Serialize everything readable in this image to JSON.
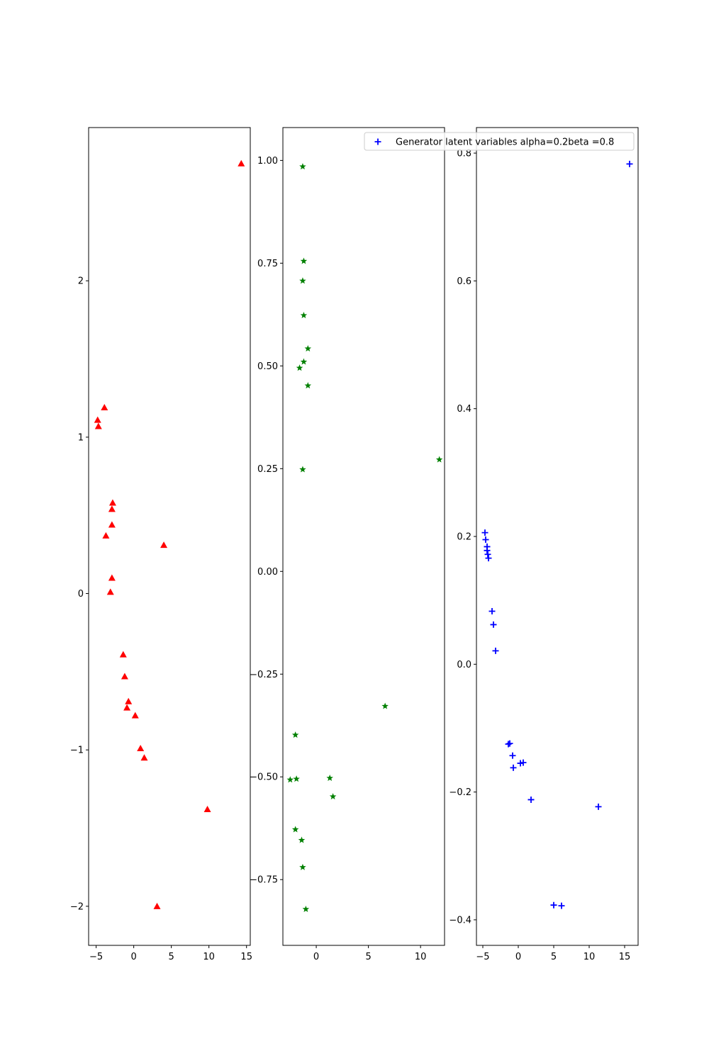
{
  "chart_data": [
    {
      "type": "scatter",
      "title": "",
      "xlabel": "",
      "ylabel": "",
      "xlim": [
        -6.0,
        15.5
      ],
      "ylim": [
        -2.25,
        2.98
      ],
      "xticks": [
        -5,
        0,
        5,
        10,
        15
      ],
      "yticks": [
        -2,
        -1,
        0,
        1,
        2
      ],
      "xtick_labels": [
        "−5",
        "0",
        "5",
        "10",
        "15"
      ],
      "ytick_labels": [
        "−2",
        "−1",
        "0",
        "1",
        "2"
      ],
      "grid": false,
      "series": [
        {
          "marker": "triangle",
          "color": "#ff0000",
          "points": [
            [
              14.3,
              2.75
            ],
            [
              -3.9,
              1.19
            ],
            [
              -4.8,
              1.11
            ],
            [
              -4.7,
              1.07
            ],
            [
              -2.8,
              0.58
            ],
            [
              -2.9,
              0.54
            ],
            [
              -2.9,
              0.44
            ],
            [
              -3.7,
              0.37
            ],
            [
              4.0,
              0.31
            ],
            [
              -2.9,
              0.1
            ],
            [
              -3.1,
              0.01
            ],
            [
              -1.4,
              -0.39
            ],
            [
              -1.2,
              -0.53
            ],
            [
              -0.7,
              -0.69
            ],
            [
              -0.9,
              -0.73
            ],
            [
              0.2,
              -0.78
            ],
            [
              0.9,
              -0.99
            ],
            [
              1.4,
              -1.05
            ],
            [
              9.8,
              -1.38
            ],
            [
              3.1,
              -2.0
            ]
          ]
        }
      ]
    },
    {
      "type": "scatter",
      "title": "",
      "xlabel": "",
      "ylabel": "",
      "xlim": [
        -3.2,
        12.3
      ],
      "ylim": [
        -0.91,
        1.08
      ],
      "xticks": [
        0,
        5,
        10
      ],
      "yticks": [
        -0.75,
        -0.5,
        -0.25,
        0.0,
        0.25,
        0.5,
        0.75,
        1.0
      ],
      "xtick_labels": [
        "0",
        "5",
        "10"
      ],
      "ytick_labels": [
        "−0.75",
        "−0.50",
        "−0.25",
        "0.00",
        "0.25",
        "0.50",
        "0.75",
        "1.00"
      ],
      "grid": false,
      "series": [
        {
          "marker": "star",
          "color": "#008000",
          "points": [
            [
              -1.3,
              0.985
            ],
            [
              -1.2,
              0.755
            ],
            [
              -1.3,
              0.707
            ],
            [
              -1.2,
              0.623
            ],
            [
              -0.8,
              0.542
            ],
            [
              -1.2,
              0.51
            ],
            [
              -1.6,
              0.495
            ],
            [
              -0.8,
              0.452
            ],
            [
              -1.3,
              0.248
            ],
            [
              11.8,
              0.272
            ],
            [
              6.6,
              -0.328
            ],
            [
              -2.0,
              -0.398
            ],
            [
              -2.5,
              -0.507
            ],
            [
              -1.9,
              -0.505
            ],
            [
              1.3,
              -0.503
            ],
            [
              1.6,
              -0.548
            ],
            [
              -2.0,
              -0.628
            ],
            [
              -1.4,
              -0.654
            ],
            [
              -1.3,
              -0.72
            ],
            [
              -1.0,
              -0.822
            ]
          ]
        }
      ]
    },
    {
      "type": "scatter",
      "title": "",
      "xlabel": "",
      "ylabel": "",
      "xlim": [
        -5.9,
        16.9
      ],
      "ylim": [
        -0.44,
        0.84
      ],
      "xticks": [
        -5,
        0,
        5,
        10,
        15
      ],
      "yticks": [
        -0.4,
        -0.2,
        0.0,
        0.2,
        0.4,
        0.6,
        0.8
      ],
      "xtick_labels": [
        "−5",
        "0",
        "5",
        "10",
        "15"
      ],
      "ytick_labels": [
        "−0.4",
        "−0.2",
        "0.0",
        "0.2",
        "0.4",
        "0.6",
        "0.8"
      ],
      "grid": false,
      "legend": {
        "placement": "upper-right",
        "entries": [
          {
            "label": "Generator latent variables alpha=0.2beta =0.8",
            "marker": "plus",
            "color": "#0000ff"
          }
        ]
      },
      "series": [
        {
          "name": "Generator latent variables alpha=0.2beta =0.8",
          "marker": "plus",
          "color": "#0000ff",
          "points": [
            [
              15.7,
              0.783
            ],
            [
              -4.7,
              0.206
            ],
            [
              -4.6,
              0.195
            ],
            [
              -4.4,
              0.184
            ],
            [
              -4.4,
              0.178
            ],
            [
              -4.3,
              0.172
            ],
            [
              -4.2,
              0.166
            ],
            [
              -3.7,
              0.083
            ],
            [
              -3.5,
              0.062
            ],
            [
              -3.2,
              0.021
            ],
            [
              -1.4,
              -0.125
            ],
            [
              -1.2,
              -0.124
            ],
            [
              -0.8,
              -0.143
            ],
            [
              -0.7,
              -0.162
            ],
            [
              0.3,
              -0.155
            ],
            [
              0.7,
              -0.154
            ],
            [
              1.8,
              -0.212
            ],
            [
              11.3,
              -0.223
            ],
            [
              5.0,
              -0.377
            ],
            [
              6.1,
              -0.378
            ]
          ]
        }
      ]
    }
  ]
}
